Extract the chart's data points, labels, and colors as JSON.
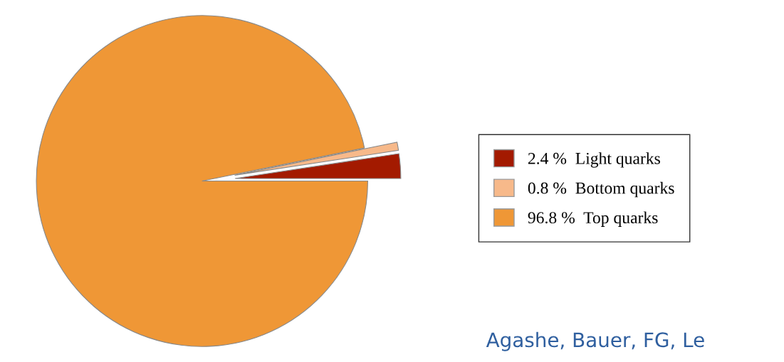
{
  "chart_data": {
    "type": "pie",
    "categories": [
      "Light quarks",
      "Bottom quarks",
      "Top quarks"
    ],
    "values": [
      2.4,
      0.8,
      96.8
    ],
    "value_labels": [
      "2.4 %",
      "0.8 %",
      "96.8 %"
    ],
    "colors": [
      "#a31a00",
      "#f7b98a",
      "#ef9736"
    ],
    "legend": "right",
    "annotations": [
      "Agashe, Bauer, FG, Le"
    ]
  }
}
